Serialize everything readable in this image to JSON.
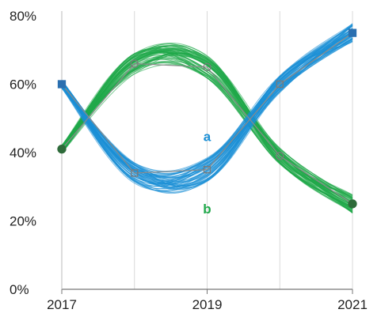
{
  "chart_data": {
    "type": "line",
    "x": [
      2017,
      2018,
      2019,
      2020,
      2021
    ],
    "x_ticks": [
      "2017",
      "2019",
      "2021"
    ],
    "y_ticks": [
      "0%",
      "20%",
      "40%",
      "60%",
      "80%"
    ],
    "ylim": [
      0,
      80
    ],
    "xlim": [
      2017,
      2021
    ],
    "grid": "vertical lines at each year",
    "ensemble_lines_per_series": 60,
    "series": [
      {
        "name": "a",
        "color": "#1a8fd6",
        "marker": "square",
        "values": [
          60,
          34,
          35,
          60,
          75
        ]
      },
      {
        "name": "b",
        "color": "#1fa84a",
        "marker": "circle",
        "values": [
          41,
          66,
          65,
          39,
          25
        ]
      }
    ]
  }
}
